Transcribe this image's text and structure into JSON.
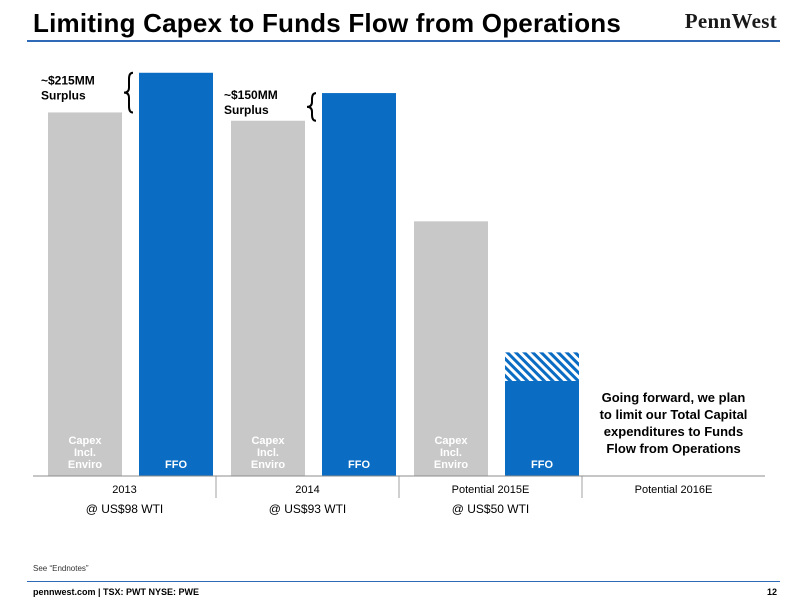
{
  "header": {
    "title": "Limiting Capex to Funds Flow from Operations",
    "logo_text": "PennWest"
  },
  "chart_data": {
    "type": "bar",
    "categories": [
      "2013",
      "2014",
      "Potential 2015E",
      "Potential 2016E"
    ],
    "price_notes": [
      "@ US$98 WTI",
      "@ US$93 WTI",
      "@ US$50 WTI",
      ""
    ],
    "series": [
      {
        "name": "Capex Incl. Enviro",
        "label_lines": [
          "Capex",
          "Incl.",
          "Enviro"
        ],
        "color": "#c8c8c8",
        "values": [
          1970,
          1925,
          1380,
          null
        ]
      },
      {
        "name": "FFO",
        "label_lines": [
          "FFO"
        ],
        "color": "#0a6cc3",
        "values": [
          2185,
          2075,
          515,
          null
        ]
      }
    ],
    "potential_upside": {
      "category": "Potential 2015E",
      "from": 515,
      "to": 670,
      "pattern": "diagonal-hatch"
    },
    "surplus_annotations": [
      {
        "category": "2013",
        "lines": [
          "~$215MM",
          "Surplus"
        ]
      },
      {
        "category": "2014",
        "lines": [
          "~$150MM",
          "Surplus"
        ]
      }
    ],
    "callout": {
      "category": "Potential 2016E",
      "lines": [
        "Going forward, we plan",
        "to limit our Total Capital",
        "expenditures to Funds",
        "Flow from Operations"
      ]
    },
    "ylim": [
      0,
      2200
    ],
    "grid": false,
    "legend": "none"
  },
  "footer": {
    "note": "See “Endnotes”",
    "left_text": "pennwest.com | TSX: PWT  NYSE: PWE",
    "page_number": "12"
  },
  "colors": {
    "accent": "#2f6ab8",
    "ffo_blue": "#0a6cc3",
    "capex_gray": "#c8c8c8"
  }
}
